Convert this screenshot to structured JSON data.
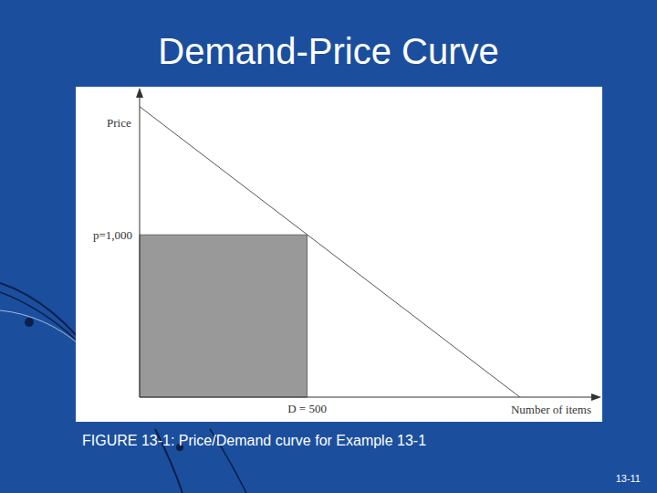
{
  "chart_data": {
    "type": "line",
    "title": "Demand-Price Curve",
    "x_label": "Number of items",
    "y_label": "Price",
    "caption": "FIGURE 13-1: Price/Demand curve for Example 13-1",
    "footer": "13-11",
    "x": [
      0,
      1135
    ],
    "values": [
      1790,
      0
    ],
    "color": "#555555",
    "xlim": [
      0,
      1370
    ],
    "ylim": [
      0,
      1890
    ],
    "xticks": [
      {
        "value": 500,
        "label": "D = 500"
      }
    ],
    "yticks": [
      {
        "value": 1000,
        "label": "p=1,000"
      }
    ],
    "grid": false
  }
}
